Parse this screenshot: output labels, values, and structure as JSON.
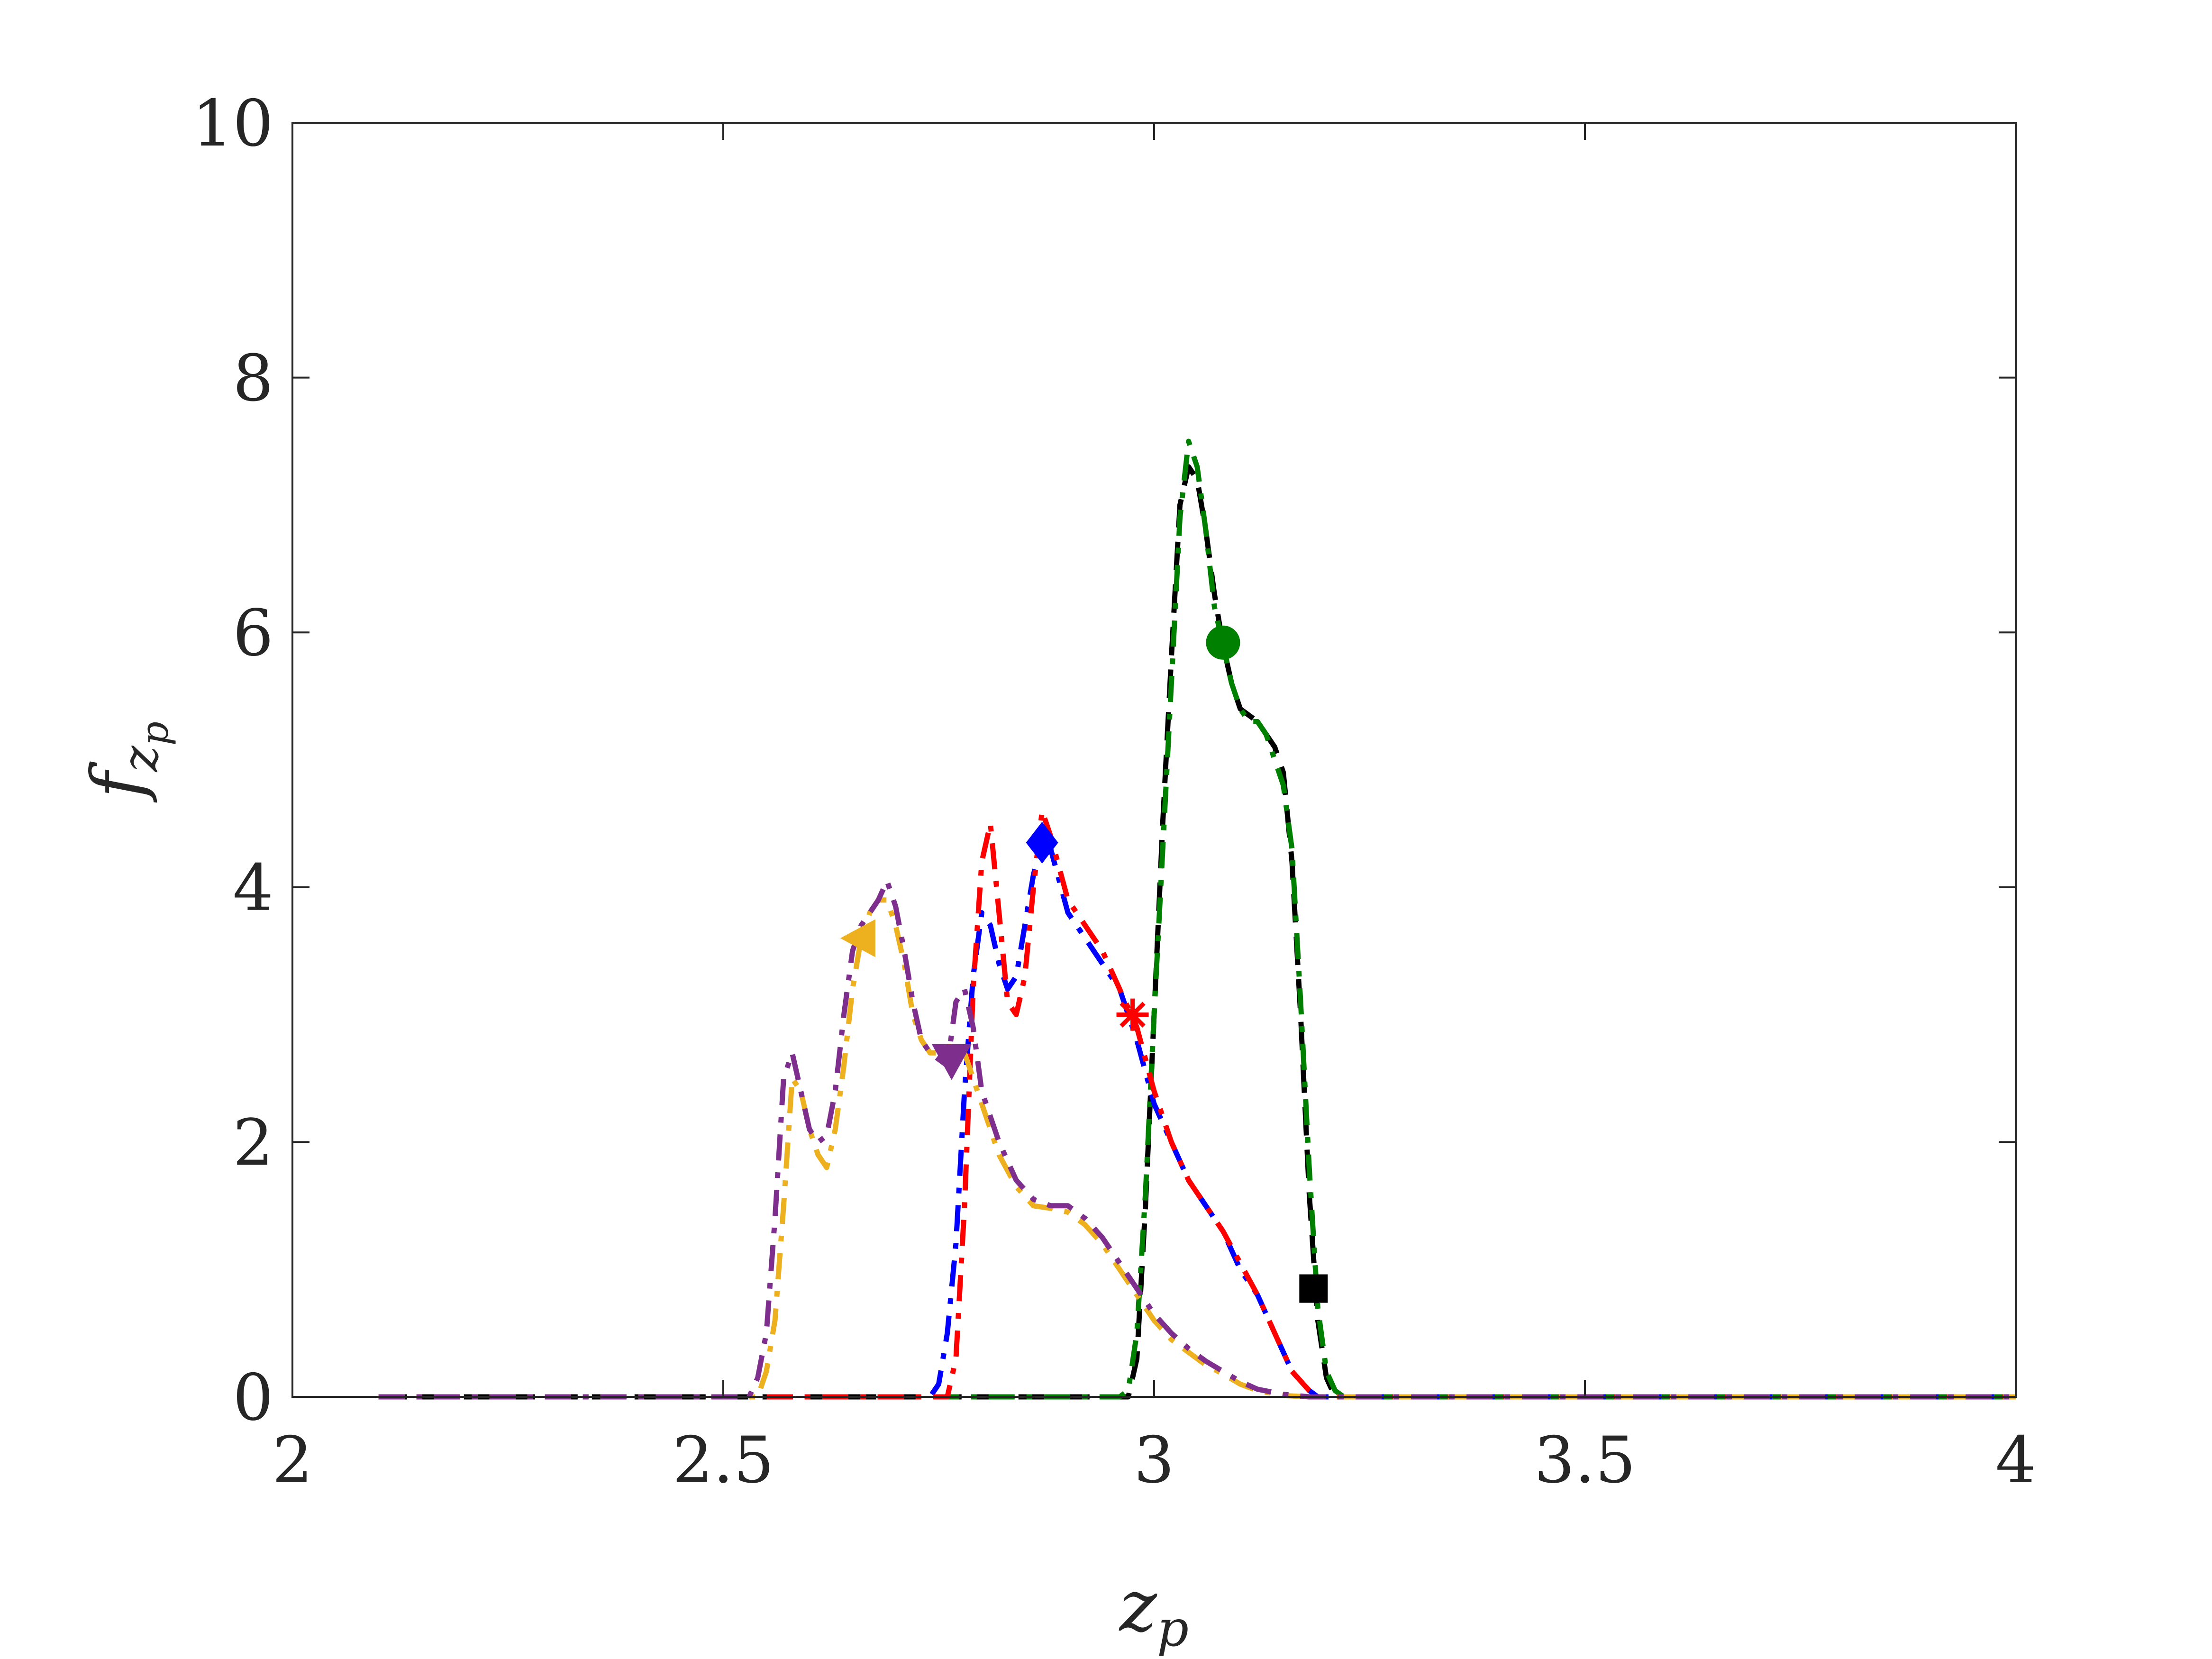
{
  "chart_data": {
    "type": "line",
    "xlabel": "z",
    "xlabel_sub": "p",
    "ylabel": "f",
    "ylabel_sub": "z",
    "ylabel_subsub": "p",
    "xlim": [
      2,
      4
    ],
    "ylim": [
      0,
      10
    ],
    "xticks": [
      2,
      2.5,
      3,
      3.5,
      4
    ],
    "xtick_labels": [
      "2",
      "2.5",
      "3",
      "3.5",
      "4"
    ],
    "yticks": [
      0,
      2,
      4,
      6,
      8,
      10
    ],
    "ytick_labels": [
      "0",
      "2",
      "4",
      "6",
      "8",
      "10"
    ],
    "grid": false,
    "legend": "none",
    "series": [
      {
        "color": "#000000",
        "dash": "solid-dash",
        "marker": "square",
        "marker_at": [
          3.185,
          0.85
        ],
        "points": [
          [
            2.1,
            0
          ],
          [
            2.97,
            0
          ],
          [
            2.98,
            0.3
          ],
          [
            2.99,
            1.5
          ],
          [
            3.0,
            3.0
          ],
          [
            3.01,
            4.5
          ],
          [
            3.02,
            5.8
          ],
          [
            3.03,
            7.0
          ],
          [
            3.04,
            7.3
          ],
          [
            3.05,
            7.2
          ],
          [
            3.06,
            6.8
          ],
          [
            3.07,
            6.3
          ],
          [
            3.08,
            5.9
          ],
          [
            3.09,
            5.6
          ],
          [
            3.1,
            5.4
          ],
          [
            3.12,
            5.3
          ],
          [
            3.14,
            5.1
          ],
          [
            3.15,
            4.9
          ],
          [
            3.16,
            4.2
          ],
          [
            3.17,
            3.0
          ],
          [
            3.18,
            1.6
          ],
          [
            3.19,
            0.6
          ],
          [
            3.2,
            0.15
          ],
          [
            3.21,
            0
          ],
          [
            4.0,
            0
          ]
        ]
      },
      {
        "color": "#008000",
        "dash": "dash-dot",
        "marker": "circle",
        "marker_at": [
          3.08,
          5.92
        ],
        "points": [
          [
            2.1,
            0
          ],
          [
            2.96,
            0
          ],
          [
            2.97,
            0.05
          ],
          [
            2.98,
            0.5
          ],
          [
            2.99,
            1.6
          ],
          [
            3.0,
            3.0
          ],
          [
            3.01,
            4.3
          ],
          [
            3.02,
            5.6
          ],
          [
            3.03,
            6.9
          ],
          [
            3.04,
            7.5
          ],
          [
            3.05,
            7.3
          ],
          [
            3.06,
            6.8
          ],
          [
            3.07,
            6.2
          ],
          [
            3.08,
            5.9
          ],
          [
            3.09,
            5.6
          ],
          [
            3.1,
            5.4
          ],
          [
            3.11,
            5.3
          ],
          [
            3.12,
            5.3
          ],
          [
            3.13,
            5.2
          ],
          [
            3.14,
            5.0
          ],
          [
            3.15,
            4.8
          ],
          [
            3.16,
            4.3
          ],
          [
            3.17,
            3.1
          ],
          [
            3.18,
            1.8
          ],
          [
            3.19,
            0.7
          ],
          [
            3.2,
            0.2
          ],
          [
            3.21,
            0.05
          ],
          [
            3.22,
            0
          ],
          [
            4.0,
            0
          ]
        ]
      },
      {
        "color": "#0000ff",
        "dash": "dash-dot",
        "marker": "diamond",
        "marker_at": [
          2.87,
          4.35
        ],
        "points": [
          [
            2.1,
            0
          ],
          [
            2.74,
            0
          ],
          [
            2.75,
            0.1
          ],
          [
            2.76,
            0.5
          ],
          [
            2.77,
            1.2
          ],
          [
            2.78,
            2.4
          ],
          [
            2.79,
            3.3
          ],
          [
            2.8,
            3.8
          ],
          [
            2.81,
            3.7
          ],
          [
            2.82,
            3.4
          ],
          [
            2.83,
            3.2
          ],
          [
            2.84,
            3.3
          ],
          [
            2.85,
            3.7
          ],
          [
            2.86,
            4.1
          ],
          [
            2.87,
            4.35
          ],
          [
            2.88,
            4.3
          ],
          [
            2.9,
            3.8
          ],
          [
            2.92,
            3.6
          ],
          [
            2.94,
            3.4
          ],
          [
            2.96,
            3.2
          ],
          [
            2.98,
            2.8
          ],
          [
            3.0,
            2.3
          ],
          [
            3.02,
            2.0
          ],
          [
            3.04,
            1.7
          ],
          [
            3.06,
            1.5
          ],
          [
            3.08,
            1.3
          ],
          [
            3.1,
            1.0
          ],
          [
            3.12,
            0.8
          ],
          [
            3.14,
            0.5
          ],
          [
            3.16,
            0.2
          ],
          [
            3.18,
            0.05
          ],
          [
            3.19,
            0
          ],
          [
            4.0,
            0
          ]
        ]
      },
      {
        "color": "#ff0000",
        "dash": "dash-dot",
        "marker": "asterisk",
        "marker_at": [
          2.975,
          3.0
        ],
        "points": [
          [
            2.1,
            0
          ],
          [
            2.76,
            0
          ],
          [
            2.77,
            0.3
          ],
          [
            2.78,
            1.5
          ],
          [
            2.79,
            3.2
          ],
          [
            2.8,
            4.2
          ],
          [
            2.81,
            4.5
          ],
          [
            2.82,
            3.8
          ],
          [
            2.83,
            3.1
          ],
          [
            2.84,
            3.0
          ],
          [
            2.85,
            3.3
          ],
          [
            2.86,
            4.0
          ],
          [
            2.87,
            4.6
          ],
          [
            2.88,
            4.4
          ],
          [
            2.9,
            3.9
          ],
          [
            2.92,
            3.7
          ],
          [
            2.94,
            3.5
          ],
          [
            2.96,
            3.2
          ],
          [
            2.98,
            2.9
          ],
          [
            3.0,
            2.4
          ],
          [
            3.02,
            2.0
          ],
          [
            3.04,
            1.7
          ],
          [
            3.06,
            1.5
          ],
          [
            3.08,
            1.3
          ],
          [
            3.1,
            1.05
          ],
          [
            3.12,
            0.8
          ],
          [
            3.14,
            0.5
          ],
          [
            3.16,
            0.2
          ],
          [
            3.18,
            0.05
          ],
          [
            3.19,
            0
          ],
          [
            4.0,
            0
          ]
        ]
      },
      {
        "color": "#edb120",
        "dash": "dash-dot",
        "marker": "triangle-left",
        "marker_at": [
          2.66,
          3.6
        ],
        "points": [
          [
            2.1,
            0
          ],
          [
            2.54,
            0
          ],
          [
            2.55,
            0.2
          ],
          [
            2.56,
            0.6
          ],
          [
            2.57,
            1.5
          ],
          [
            2.58,
            2.5
          ],
          [
            2.59,
            2.4
          ],
          [
            2.6,
            2.1
          ],
          [
            2.61,
            1.9
          ],
          [
            2.62,
            1.8
          ],
          [
            2.63,
            2.1
          ],
          [
            2.64,
            2.6
          ],
          [
            2.65,
            3.2
          ],
          [
            2.66,
            3.6
          ],
          [
            2.67,
            3.8
          ],
          [
            2.68,
            3.9
          ],
          [
            2.69,
            3.9
          ],
          [
            2.7,
            3.7
          ],
          [
            2.71,
            3.4
          ],
          [
            2.72,
            3.0
          ],
          [
            2.73,
            2.8
          ],
          [
            2.74,
            2.7
          ],
          [
            2.75,
            2.7
          ],
          [
            2.76,
            2.75
          ],
          [
            2.77,
            2.75
          ],
          [
            2.78,
            2.7
          ],
          [
            2.8,
            2.3
          ],
          [
            2.82,
            1.9
          ],
          [
            2.84,
            1.65
          ],
          [
            2.86,
            1.5
          ],
          [
            2.88,
            1.48
          ],
          [
            2.9,
            1.45
          ],
          [
            2.92,
            1.35
          ],
          [
            2.94,
            1.2
          ],
          [
            2.96,
            1.0
          ],
          [
            2.98,
            0.8
          ],
          [
            3.0,
            0.6
          ],
          [
            3.02,
            0.45
          ],
          [
            3.04,
            0.35
          ],
          [
            3.06,
            0.25
          ],
          [
            3.08,
            0.18
          ],
          [
            3.1,
            0.1
          ],
          [
            3.12,
            0.05
          ],
          [
            3.15,
            0.01
          ],
          [
            3.18,
            0
          ],
          [
            4.0,
            0
          ]
        ]
      },
      {
        "color": "#7e2f8e",
        "dash": "dash-dot",
        "marker": "triangle-down",
        "marker_at": [
          2.765,
          2.65
        ],
        "points": [
          [
            2.1,
            0
          ],
          [
            2.53,
            0
          ],
          [
            2.54,
            0.15
          ],
          [
            2.55,
            0.5
          ],
          [
            2.56,
            1.4
          ],
          [
            2.57,
            2.5
          ],
          [
            2.58,
            2.7
          ],
          [
            2.59,
            2.4
          ],
          [
            2.6,
            2.1
          ],
          [
            2.61,
            2.0
          ],
          [
            2.62,
            2.05
          ],
          [
            2.63,
            2.4
          ],
          [
            2.64,
            3.0
          ],
          [
            2.65,
            3.5
          ],
          [
            2.66,
            3.7
          ],
          [
            2.67,
            3.8
          ],
          [
            2.68,
            3.9
          ],
          [
            2.69,
            4.05
          ],
          [
            2.7,
            3.85
          ],
          [
            2.71,
            3.5
          ],
          [
            2.72,
            3.1
          ],
          [
            2.73,
            2.8
          ],
          [
            2.74,
            2.7
          ],
          [
            2.75,
            2.65
          ],
          [
            2.76,
            2.6
          ],
          [
            2.77,
            3.1
          ],
          [
            2.78,
            3.2
          ],
          [
            2.79,
            2.9
          ],
          [
            2.8,
            2.4
          ],
          [
            2.82,
            2.0
          ],
          [
            2.84,
            1.7
          ],
          [
            2.86,
            1.55
          ],
          [
            2.88,
            1.5
          ],
          [
            2.9,
            1.5
          ],
          [
            2.92,
            1.4
          ],
          [
            2.94,
            1.25
          ],
          [
            2.96,
            1.05
          ],
          [
            2.98,
            0.85
          ],
          [
            3.0,
            0.65
          ],
          [
            3.02,
            0.5
          ],
          [
            3.04,
            0.38
          ],
          [
            3.06,
            0.28
          ],
          [
            3.08,
            0.2
          ],
          [
            3.1,
            0.12
          ],
          [
            3.12,
            0.06
          ],
          [
            3.15,
            0.02
          ],
          [
            3.18,
            0
          ],
          [
            4.0,
            0
          ]
        ]
      }
    ]
  }
}
